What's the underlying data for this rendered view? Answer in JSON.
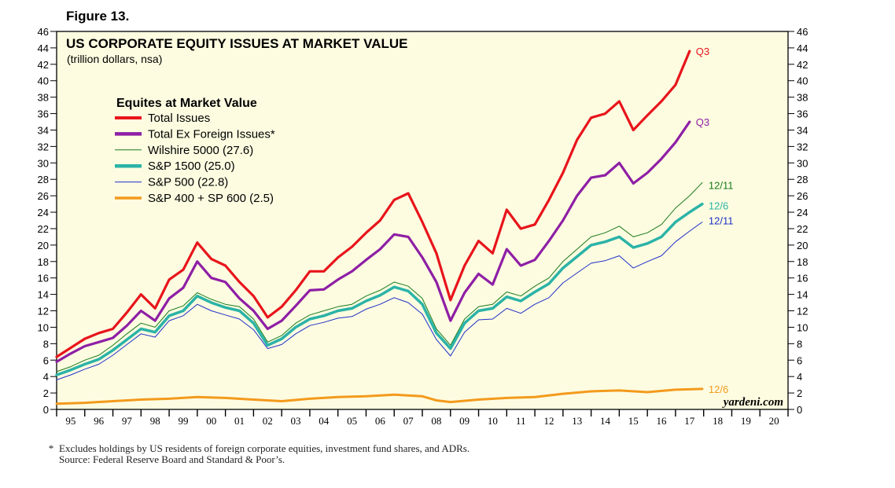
{
  "figure_label": "Figure 13.",
  "chart_data": {
    "type": "line",
    "title": "US CORPORATE EQUITY ISSUES AT MARKET VALUE",
    "subtitle": "(trillion dollars, nsa)",
    "ylim": [
      0,
      46
    ],
    "yticks": [
      0,
      2,
      4,
      6,
      8,
      10,
      12,
      14,
      16,
      18,
      20,
      22,
      24,
      26,
      28,
      30,
      32,
      34,
      36,
      38,
      40,
      42,
      44,
      46
    ],
    "xlim": [
      1995.0,
      2021.0
    ],
    "x_tick_labels": [
      "95",
      "96",
      "97",
      "98",
      "99",
      "00",
      "01",
      "02",
      "03",
      "04",
      "05",
      "06",
      "07",
      "08",
      "09",
      "10",
      "11",
      "12",
      "13",
      "14",
      "15",
      "16",
      "17",
      "18",
      "19",
      "20"
    ],
    "legend": {
      "title": "Equites at Market Value",
      "position": "upper-left",
      "entries": [
        {
          "label": "Total Issues",
          "color": "#e8141b",
          "width": 4
        },
        {
          "label": "Total Ex Foreign Issues*",
          "color": "#8e1fa5",
          "width": 4
        },
        {
          "label": "Wilshire 5000 (27.6)",
          "color": "#1a7a1a",
          "width": 1
        },
        {
          "label": "S&P 1500 (25.0)",
          "color": "#2bb3a7",
          "width": 4
        },
        {
          "label": "S&P 500 (22.8)",
          "color": "#1f2fc8",
          "width": 1
        },
        {
          "label": "S&P 400 + SP 600 (2.5)",
          "color": "#f39a1c",
          "width": 3
        }
      ]
    },
    "series": [
      {
        "name": "Total Issues",
        "color": "#e8141b",
        "end_label": "Q3",
        "x": [
          1995.0,
          1995.5,
          1996.0,
          1996.5,
          1997.0,
          1997.5,
          1998.0,
          1998.5,
          1999.0,
          1999.5,
          2000.0,
          2000.5,
          2001.0,
          2001.5,
          2002.0,
          2002.5,
          2003.0,
          2003.5,
          2004.0,
          2004.5,
          2005.0,
          2005.5,
          2006.0,
          2006.5,
          2007.0,
          2007.5,
          2008.0,
          2008.5,
          2009.0,
          2009.5,
          2010.0,
          2010.5,
          2011.0,
          2011.5,
          2012.0,
          2012.5,
          2013.0,
          2013.5,
          2014.0,
          2014.5,
          2015.0,
          2015.5,
          2016.0,
          2016.5,
          2017.0,
          2017.5
        ],
        "values": [
          6.4,
          7.5,
          8.6,
          9.3,
          9.8,
          11.8,
          14.0,
          12.3,
          15.8,
          17.0,
          20.3,
          18.3,
          17.5,
          15.5,
          13.8,
          11.2,
          12.5,
          14.5,
          16.8,
          16.8,
          18.5,
          19.8,
          21.5,
          23.0,
          25.5,
          26.3,
          22.8,
          19.0,
          13.3,
          17.5,
          20.5,
          19.0,
          24.3,
          22.0,
          22.5,
          25.5,
          28.8,
          32.8,
          35.5,
          36.0,
          37.5,
          34.0,
          35.8,
          37.5,
          39.5,
          43.6
        ]
      },
      {
        "name": "Total Ex Foreign Issues*",
        "color": "#8e1fa5",
        "end_label": "Q3",
        "x": [
          1995.0,
          1995.5,
          1996.0,
          1996.5,
          1997.0,
          1997.5,
          1998.0,
          1998.5,
          1999.0,
          1999.5,
          2000.0,
          2000.5,
          2001.0,
          2001.5,
          2002.0,
          2002.5,
          2003.0,
          2003.5,
          2004.0,
          2004.5,
          2005.0,
          2005.5,
          2006.0,
          2006.5,
          2007.0,
          2007.5,
          2008.0,
          2008.5,
          2009.0,
          2009.5,
          2010.0,
          2010.5,
          2011.0,
          2011.5,
          2012.0,
          2012.5,
          2013.0,
          2013.5,
          2014.0,
          2014.5,
          2015.0,
          2015.5,
          2016.0,
          2016.5,
          2017.0,
          2017.5
        ],
        "values": [
          5.8,
          6.8,
          7.7,
          8.2,
          8.7,
          10.2,
          12.0,
          10.8,
          13.5,
          14.8,
          18.0,
          16.0,
          15.5,
          13.5,
          12.0,
          9.8,
          10.8,
          12.6,
          14.5,
          14.6,
          15.8,
          16.8,
          18.2,
          19.5,
          21.3,
          21.0,
          18.5,
          15.5,
          10.8,
          14.2,
          16.5,
          15.2,
          19.5,
          17.5,
          18.2,
          20.5,
          23.0,
          26.0,
          28.2,
          28.5,
          30.0,
          27.5,
          28.8,
          30.5,
          32.5,
          35.0
        ]
      },
      {
        "name": "Wilshire 5000 (27.6)",
        "color": "#1a7a1a",
        "end_label": "12/11",
        "x": [
          1995.0,
          1995.5,
          1996.0,
          1996.5,
          1997.0,
          1997.5,
          1998.0,
          1998.5,
          1999.0,
          1999.5,
          2000.0,
          2000.5,
          2001.0,
          2001.5,
          2002.0,
          2002.5,
          2003.0,
          2003.5,
          2004.0,
          2004.5,
          2005.0,
          2005.5,
          2006.0,
          2006.5,
          2007.0,
          2007.5,
          2008.0,
          2008.5,
          2009.0,
          2009.5,
          2010.0,
          2010.5,
          2011.0,
          2011.5,
          2012.0,
          2012.5,
          2013.0,
          2013.5,
          2014.0,
          2014.5,
          2015.0,
          2015.5,
          2016.0,
          2016.5,
          2017.0,
          2017.5,
          2017.95
        ],
        "values": [
          4.6,
          5.2,
          6.0,
          6.6,
          7.8,
          9.2,
          10.5,
          10.0,
          12.0,
          12.6,
          14.2,
          13.4,
          12.8,
          12.5,
          11.0,
          8.2,
          9.0,
          10.5,
          11.5,
          12.0,
          12.5,
          12.8,
          13.8,
          14.5,
          15.5,
          15.0,
          13.5,
          9.8,
          7.8,
          11.0,
          12.5,
          12.8,
          14.3,
          13.8,
          15.0,
          16.0,
          18.0,
          19.5,
          21.0,
          21.5,
          22.3,
          21.0,
          21.5,
          22.5,
          24.5,
          26.0,
          27.6
        ]
      },
      {
        "name": "S&P 1500 (25.0)",
        "color": "#2bb3a7",
        "end_label": "12/6",
        "x": [
          1995.0,
          1995.5,
          1996.0,
          1996.5,
          1997.0,
          1997.5,
          1998.0,
          1998.5,
          1999.0,
          1999.5,
          2000.0,
          2000.5,
          2001.0,
          2001.5,
          2002.0,
          2002.5,
          2003.0,
          2003.5,
          2004.0,
          2004.5,
          2005.0,
          2005.5,
          2006.0,
          2006.5,
          2007.0,
          2007.5,
          2008.0,
          2008.5,
          2009.0,
          2009.5,
          2010.0,
          2010.5,
          2011.0,
          2011.5,
          2012.0,
          2012.5,
          2013.0,
          2013.5,
          2014.0,
          2014.5,
          2015.0,
          2015.5,
          2016.0,
          2016.5,
          2017.0,
          2017.5,
          2017.95
        ],
        "values": [
          4.2,
          4.8,
          5.5,
          6.1,
          7.2,
          8.5,
          9.8,
          9.4,
          11.4,
          12.0,
          13.8,
          13.0,
          12.4,
          12.0,
          10.5,
          7.8,
          8.6,
          10.0,
          11.0,
          11.4,
          12.0,
          12.3,
          13.2,
          13.9,
          14.9,
          14.4,
          12.8,
          9.3,
          7.4,
          10.5,
          12.0,
          12.3,
          13.7,
          13.2,
          14.3,
          15.3,
          17.2,
          18.6,
          20.0,
          20.4,
          21.0,
          19.7,
          20.2,
          21.0,
          22.8,
          24.0,
          25.0
        ]
      },
      {
        "name": "S&P 500 (22.8)",
        "color": "#1f2fc8",
        "end_label": "12/11",
        "x": [
          1995.0,
          1995.5,
          1996.0,
          1996.5,
          1997.0,
          1997.5,
          1998.0,
          1998.5,
          1999.0,
          1999.5,
          2000.0,
          2000.5,
          2001.0,
          2001.5,
          2002.0,
          2002.5,
          2003.0,
          2003.5,
          2004.0,
          2004.5,
          2005.0,
          2005.5,
          2006.0,
          2006.5,
          2007.0,
          2007.5,
          2008.0,
          2008.5,
          2009.0,
          2009.5,
          2010.0,
          2010.5,
          2011.0,
          2011.5,
          2012.0,
          2012.5,
          2013.0,
          2013.5,
          2014.0,
          2014.5,
          2015.0,
          2015.5,
          2016.0,
          2016.5,
          2017.0,
          2017.5,
          2017.95
        ],
        "values": [
          3.6,
          4.2,
          4.9,
          5.5,
          6.6,
          7.9,
          9.2,
          8.8,
          10.8,
          11.4,
          12.8,
          12.0,
          11.5,
          11.0,
          9.7,
          7.4,
          7.9,
          9.2,
          10.2,
          10.6,
          11.1,
          11.3,
          12.2,
          12.8,
          13.6,
          13.0,
          11.6,
          8.5,
          6.5,
          9.4,
          10.9,
          11.0,
          12.3,
          11.7,
          12.8,
          13.6,
          15.4,
          16.6,
          17.8,
          18.1,
          18.7,
          17.2,
          18.0,
          18.7,
          20.4,
          21.7,
          22.8
        ]
      },
      {
        "name": "S&P 400 + SP 600 (2.5)",
        "color": "#f39a1c",
        "end_label": "12/6",
        "x": [
          1995.0,
          1996.0,
          1997.0,
          1998.0,
          1999.0,
          2000.0,
          2001.0,
          2002.0,
          2003.0,
          2004.0,
          2005.0,
          2006.0,
          2007.0,
          2008.0,
          2008.5,
          2009.0,
          2010.0,
          2011.0,
          2012.0,
          2013.0,
          2014.0,
          2015.0,
          2016.0,
          2017.0,
          2017.95
        ],
        "values": [
          0.7,
          0.8,
          1.0,
          1.2,
          1.3,
          1.5,
          1.4,
          1.2,
          1.0,
          1.3,
          1.5,
          1.6,
          1.8,
          1.6,
          1.1,
          0.9,
          1.2,
          1.4,
          1.5,
          1.9,
          2.2,
          2.3,
          2.1,
          2.4,
          2.5
        ]
      }
    ],
    "watermark": "yardeni.com"
  },
  "footnotes": {
    "asterisk": "*",
    "note": "Excludes holdings by US residents of foreign corporate equities, investment fund shares, and ADRs.",
    "source": "Source: Federal Reserve Board and Standard & Poor’s."
  }
}
